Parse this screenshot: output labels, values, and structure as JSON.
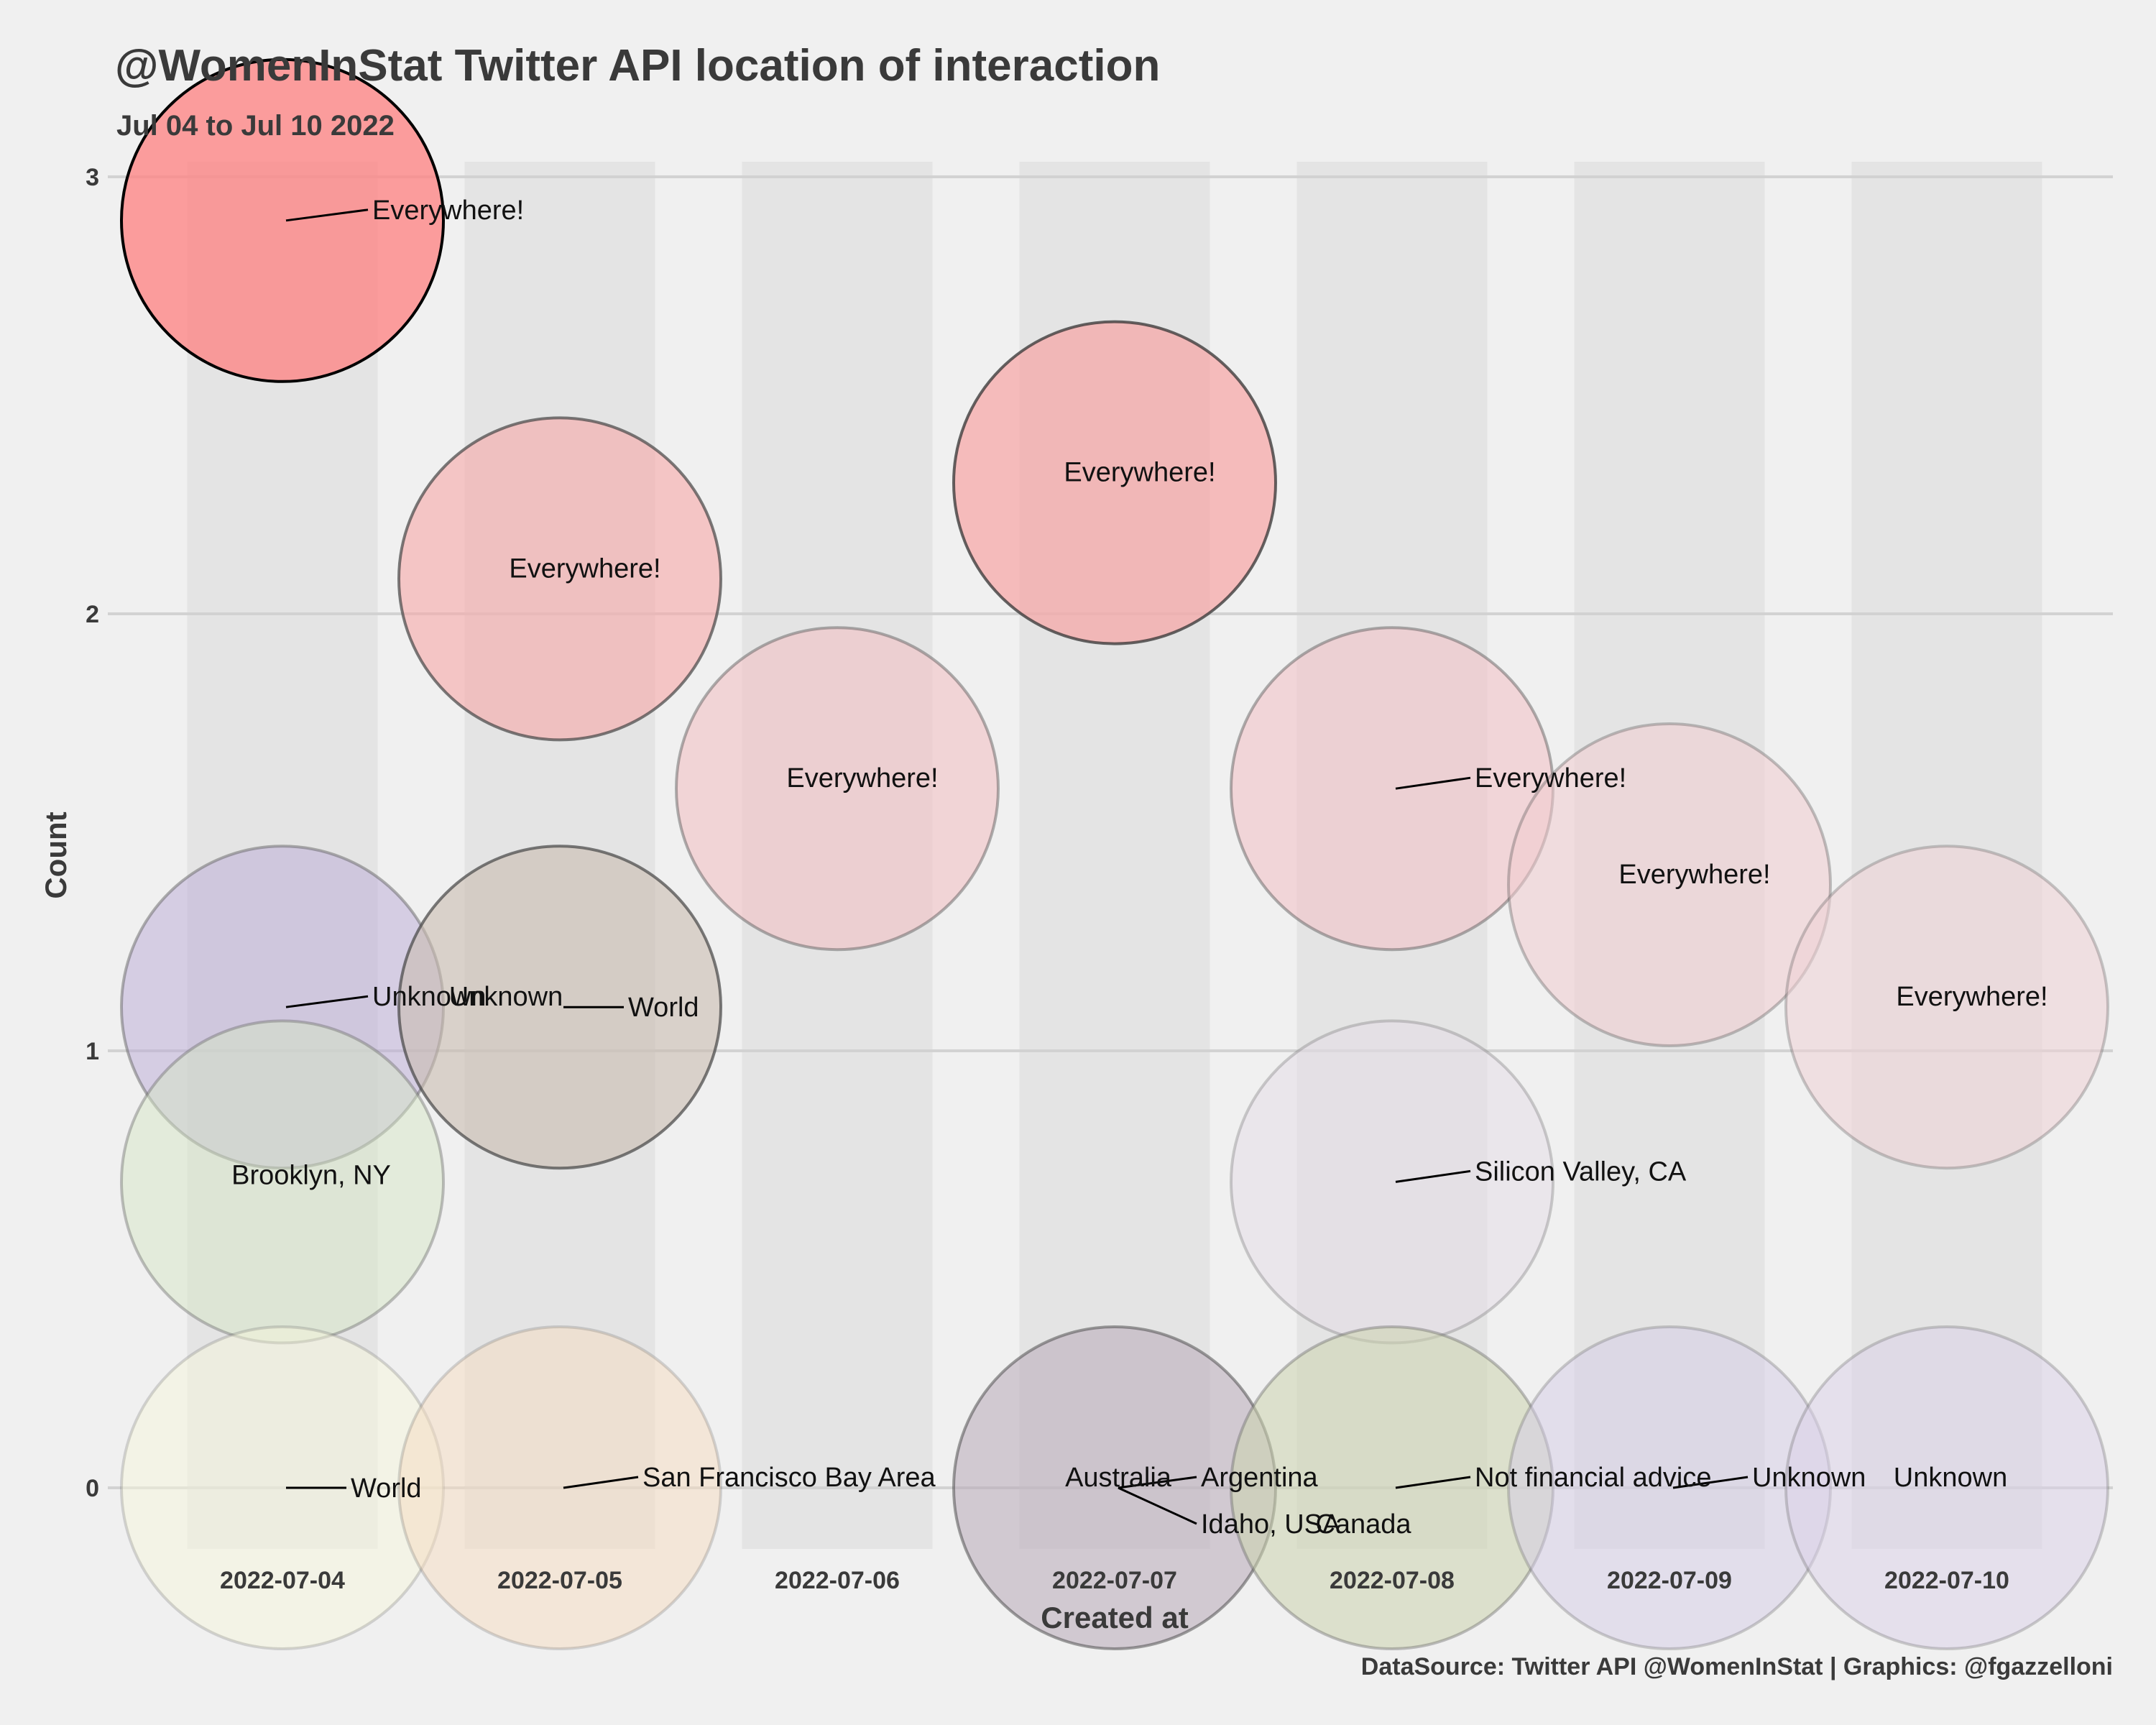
{
  "chart_data": {
    "type": "scatter",
    "title": "@WomenInStat Twitter API location of interaction",
    "subtitle": "Jul 04 to Jul 10 2022",
    "xlabel": "Created at",
    "ylabel": "Count",
    "caption": "DataSource: Twitter API @WomenInStat | Graphics: @fgazzelloni",
    "categories": [
      "2022-07-04",
      "2022-07-05",
      "2022-07-06",
      "2022-07-07",
      "2022-07-08",
      "2022-07-09",
      "2022-07-10"
    ],
    "y_ticks": [
      "0",
      "1",
      "2",
      "3"
    ],
    "ylim": [
      -0.15,
      3.05
    ],
    "grid": true,
    "points": [
      {
        "x": "2022-07-04",
        "y": 2.9,
        "label": "Everywhere!",
        "color": "#ff8080",
        "alpha": 0.75,
        "stroke": "#000000",
        "stroke_alpha": 1.0
      },
      {
        "x": "2022-07-04",
        "y": 1.1,
        "label": "Unknown",
        "color": "#b9a9d6",
        "alpha": 0.5,
        "stroke": "#666666",
        "stroke_alpha": 0.5
      },
      {
        "x": "2022-07-04",
        "y": 0.7,
        "label": "Brooklyn, NY",
        "color": "#d6e6c6",
        "alpha": 0.5,
        "stroke": "#666666",
        "stroke_alpha": 0.4
      },
      {
        "x": "2022-07-04",
        "y": 0.0,
        "label": "World",
        "color": "#f5f5dc",
        "alpha": 0.5,
        "stroke": "#666666",
        "stroke_alpha": 0.25
      },
      {
        "x": "2022-07-05",
        "y": 2.08,
        "label": "Everywhere!",
        "color": "#f7a8a8",
        "alpha": 0.6,
        "stroke": "#444444",
        "stroke_alpha": 0.7
      },
      {
        "x": "2022-07-05",
        "y": 1.1,
        "label": "Unknown",
        "color": "#c9bdb0",
        "alpha": 0.6,
        "stroke": "#444444",
        "stroke_alpha": 0.7
      },
      {
        "x": "2022-07-05",
        "y": 1.1,
        "label": "World",
        "color": "#c9bdb0",
        "alpha": 0.0,
        "stroke": "#444444",
        "stroke_alpha": 0.0
      },
      {
        "x": "2022-07-05",
        "y": 0.0,
        "label": "San Francisco Bay Area",
        "color": "#f6dcc0",
        "alpha": 0.5,
        "stroke": "#666666",
        "stroke_alpha": 0.25
      },
      {
        "x": "2022-07-06",
        "y": 1.6,
        "label": "Everywhere!",
        "color": "#f2c2c4",
        "alpha": 0.6,
        "stroke": "#555555",
        "stroke_alpha": 0.45
      },
      {
        "x": "2022-07-07",
        "y": 2.3,
        "label": "Everywhere!",
        "color": "#f6a4a4",
        "alpha": 0.7,
        "stroke": "#333333",
        "stroke_alpha": 0.75
      },
      {
        "x": "2022-07-07",
        "y": 0.0,
        "label": "Australia",
        "color": "#b8aab8",
        "alpha": 0.55,
        "stroke": "#444444",
        "stroke_alpha": 0.5
      },
      {
        "x": "2022-07-07",
        "y": 0.0,
        "label": "Argentina",
        "color": "#b8aab8",
        "alpha": 0.0,
        "stroke": "#444444",
        "stroke_alpha": 0.0
      },
      {
        "x": "2022-07-07",
        "y": 0.0,
        "label": "Idaho, USA",
        "color": "#b8aab8",
        "alpha": 0.0,
        "stroke": "#444444",
        "stroke_alpha": 0.0
      },
      {
        "x": "2022-07-08",
        "y": 1.6,
        "label": "Everywhere!",
        "color": "#f3c0c4",
        "alpha": 0.55,
        "stroke": "#555555",
        "stroke_alpha": 0.45
      },
      {
        "x": "2022-07-08",
        "y": 0.7,
        "label": "Silicon Valley, CA",
        "color": "#e3dbe6",
        "alpha": 0.5,
        "stroke": "#666666",
        "stroke_alpha": 0.3
      },
      {
        "x": "2022-07-08",
        "y": 0.0,
        "label": "Not financial advice",
        "color": "#ccd4ae",
        "alpha": 0.55,
        "stroke": "#666666",
        "stroke_alpha": 0.4
      },
      {
        "x": "2022-07-08",
        "y": 0.0,
        "label": "Canada",
        "color": "#ccd4ae",
        "alpha": 0.0,
        "stroke": "#666666",
        "stroke_alpha": 0.0
      },
      {
        "x": "2022-07-09",
        "y": 1.38,
        "label": "Everywhere!",
        "color": "#f0ccd0",
        "alpha": 0.55,
        "stroke": "#555555",
        "stroke_alpha": 0.35
      },
      {
        "x": "2022-07-09",
        "y": 0.0,
        "label": "Unknown",
        "color": "#d4cce6",
        "alpha": 0.5,
        "stroke": "#666666",
        "stroke_alpha": 0.3
      },
      {
        "x": "2022-07-10",
        "y": 1.1,
        "label": "Everywhere!",
        "color": "#eed2d6",
        "alpha": 0.55,
        "stroke": "#555555",
        "stroke_alpha": 0.3
      },
      {
        "x": "2022-07-10",
        "y": 0.0,
        "label": "Unknown",
        "color": "#d9d0e8",
        "alpha": 0.5,
        "stroke": "#666666",
        "stroke_alpha": 0.3
      }
    ]
  }
}
